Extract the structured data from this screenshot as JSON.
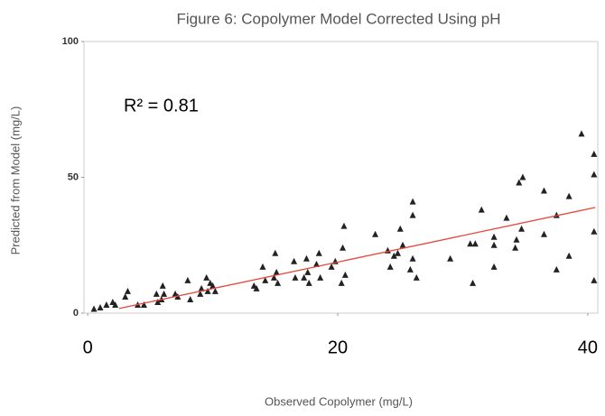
{
  "chart_data": {
    "type": "scatter",
    "title": "Figure 6: Copolymer Model Corrected Using pH",
    "xlabel": "Observed Copolymer (mg/L)",
    "ylabel": "Predicted from Model (mg/L)",
    "annotation": "R² = 0.81",
    "xlim": [
      -0.3,
      40.8
    ],
    "ylim": [
      0,
      100
    ],
    "xticks": [
      0,
      20,
      40
    ],
    "yticks": [
      0,
      50,
      100
    ],
    "color": "#222222",
    "trend": {
      "color": "#e8463a",
      "x": [
        2.5,
        40.6
      ],
      "y": [
        1.7,
        38.9
      ]
    },
    "x": [
      40.5,
      40.5,
      40.5,
      40.5,
      39.5,
      38.5,
      38.5,
      37.5,
      37.5,
      36.5,
      36.5,
      34.5,
      34.8,
      34.7,
      34.3,
      34.2,
      33.5,
      32.5,
      32.5,
      32.5,
      31,
      30.6,
      30.8,
      31.5,
      29,
      26,
      26,
      26,
      25.8,
      26.3,
      25,
      25.2,
      24.8,
      24.5,
      24,
      24.2,
      23,
      20.5,
      20.4,
      20.6,
      20.3,
      19.5,
      19.8,
      18.5,
      18.3,
      18.6,
      17.5,
      17.6,
      17.3,
      17.7,
      16.5,
      16.6,
      15,
      15.1,
      14.9,
      15.2,
      14,
      14.2,
      13.5,
      13.3,
      10,
      10.2,
      9.8,
      9.5,
      9.6,
      9,
      9.1,
      8,
      8.2,
      7,
      7.2,
      6,
      6.1,
      5.9,
      5.5,
      5.6,
      4,
      4.5,
      3,
      3.2,
      2,
      2.2,
      1.5,
      1,
      0.5
    ],
    "values": [
      58.5,
      51,
      30,
      12,
      66,
      43,
      21,
      36,
      16,
      45,
      29,
      48,
      50,
      31,
      27,
      24,
      35,
      28,
      25,
      17,
      25.5,
      25.5,
      11,
      38,
      20,
      41,
      36,
      20,
      16,
      13,
      31,
      25,
      22,
      21,
      23,
      17,
      29,
      32,
      24,
      14,
      11,
      17,
      19,
      22,
      18,
      13,
      20,
      15,
      13,
      11,
      19,
      13,
      22,
      15,
      13,
      11,
      17,
      12,
      9,
      10,
      10,
      8,
      11,
      13,
      8,
      7,
      9,
      12,
      5,
      7,
      6,
      10,
      7,
      5,
      7,
      4,
      3,
      3,
      6,
      8,
      4,
      3,
      3,
      2,
      1.5
    ]
  }
}
